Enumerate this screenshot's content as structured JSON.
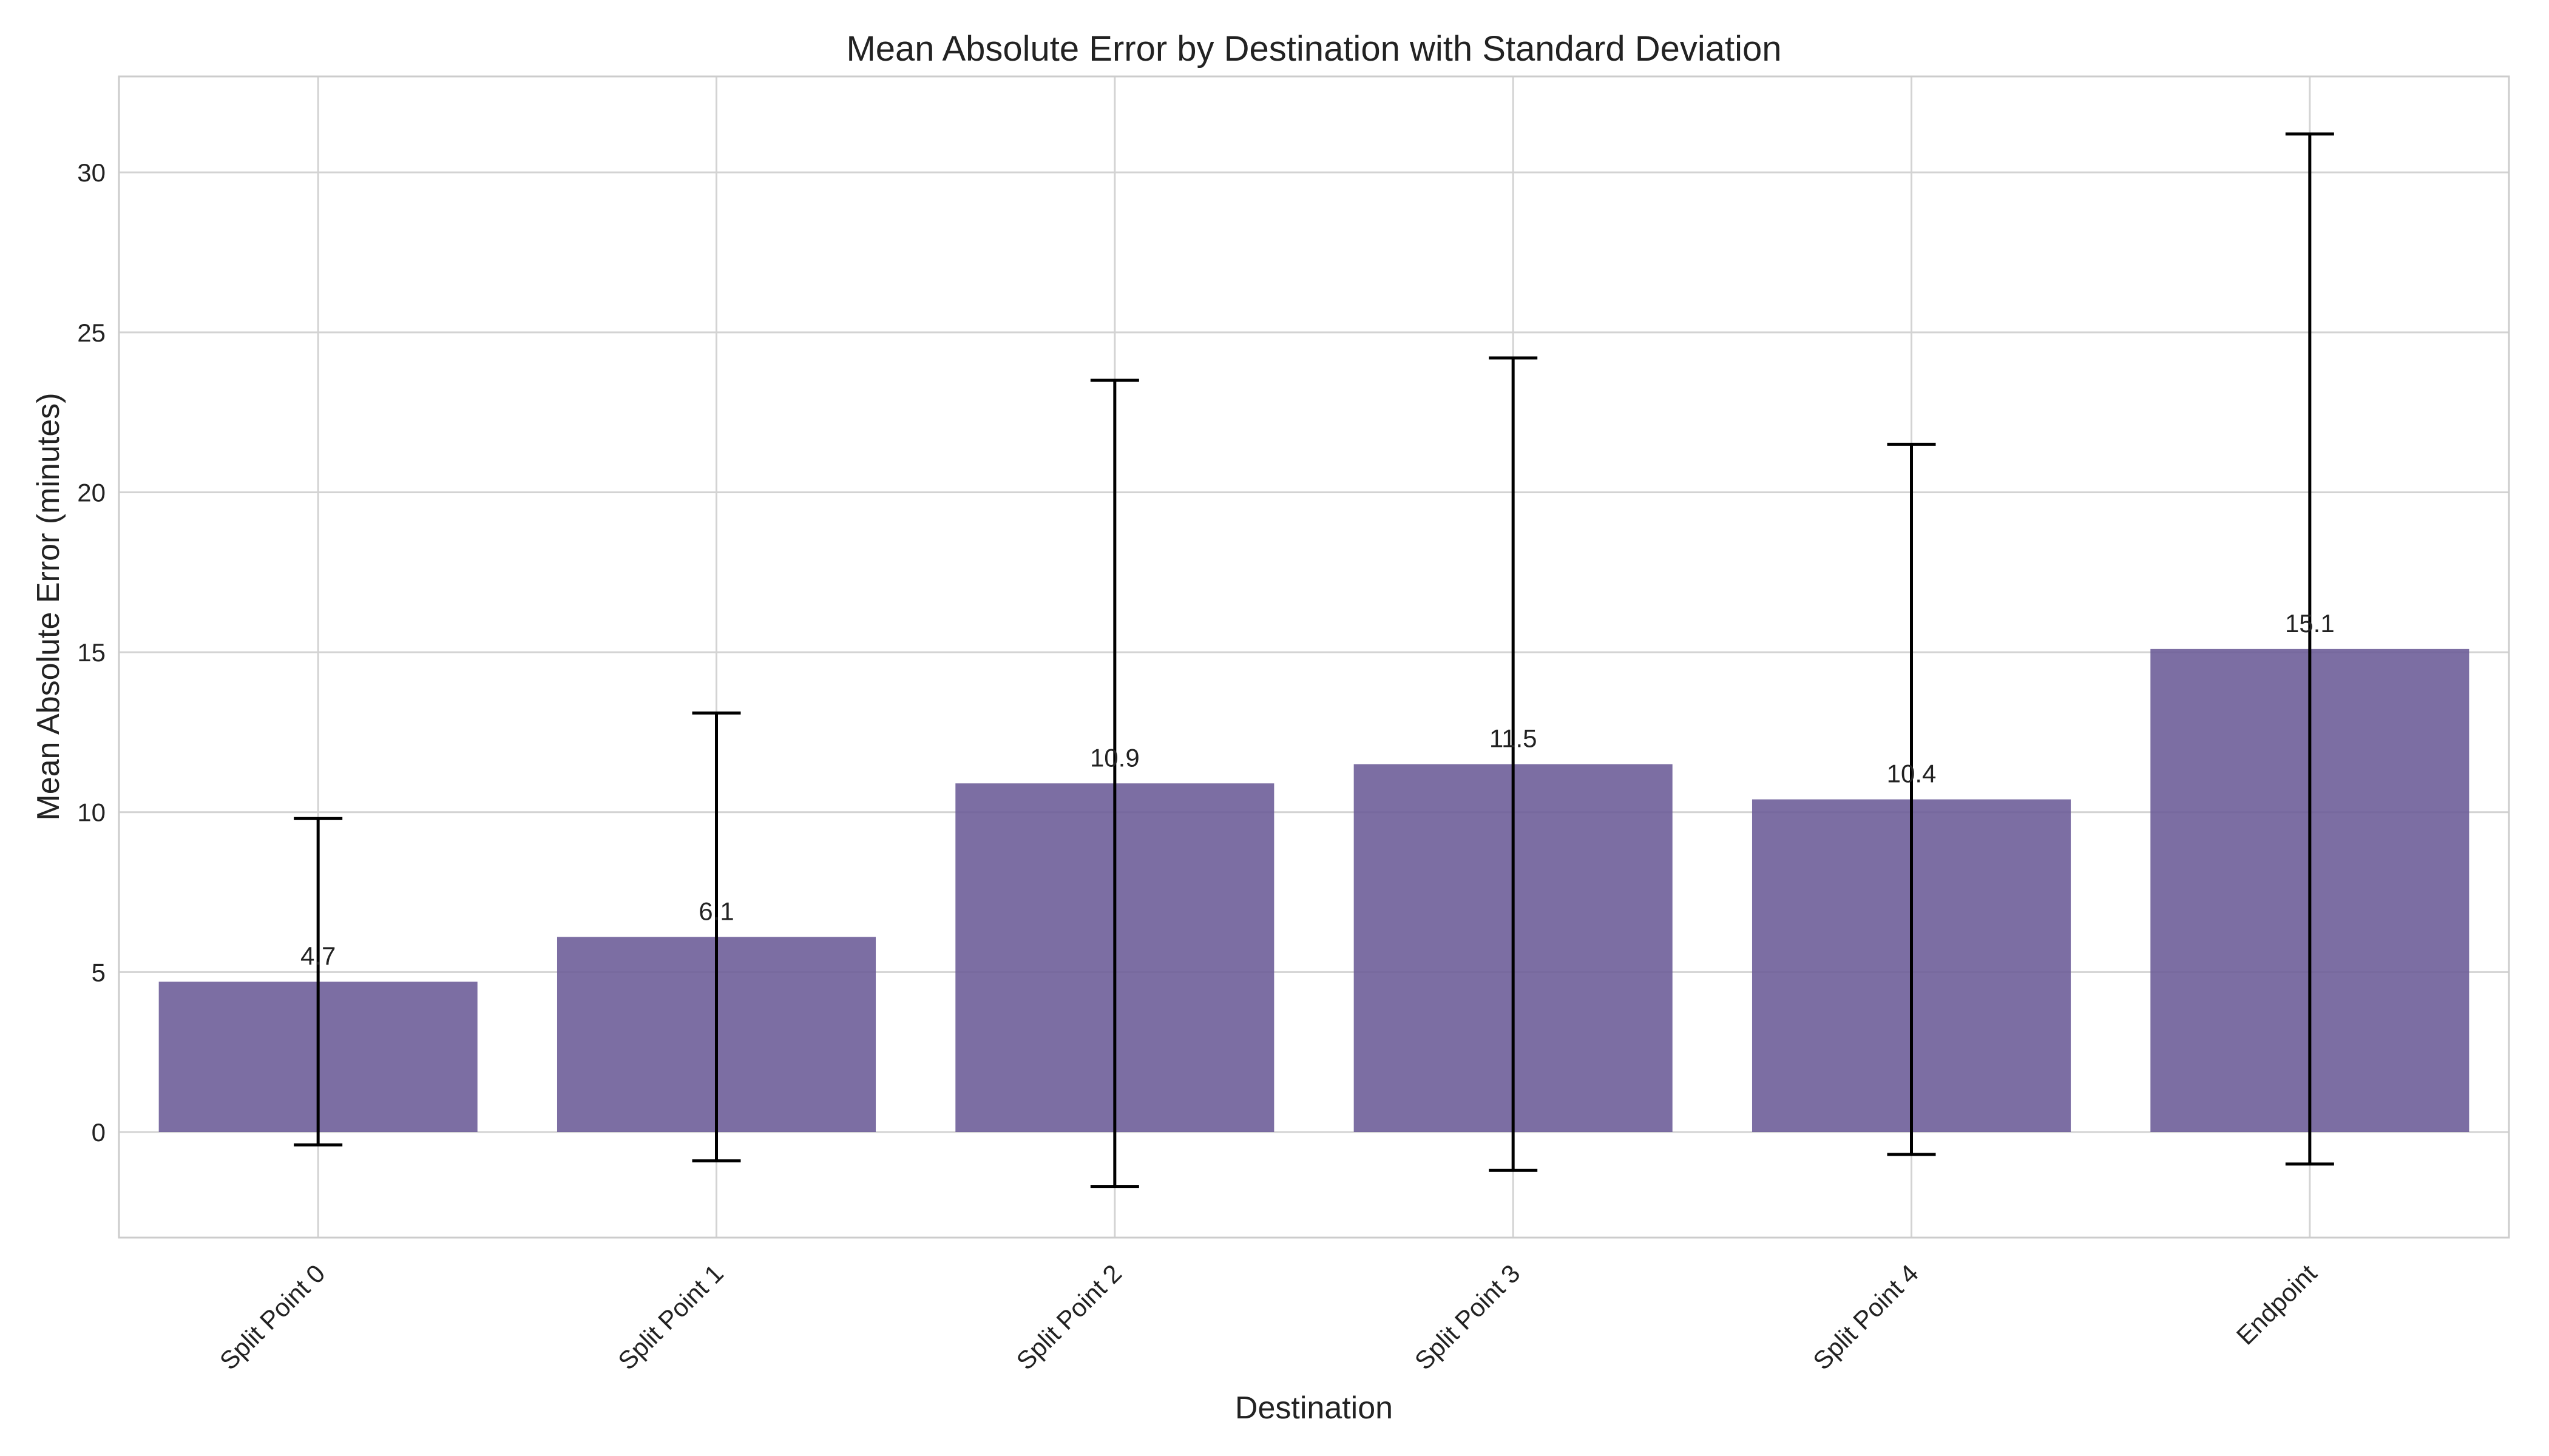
{
  "chart_data": {
    "type": "bar",
    "title": "Mean Absolute Error by Destination with Standard Deviation",
    "xlabel": "Destination",
    "ylabel": "Mean Absolute Error (minutes)",
    "categories": [
      "Split Point 0",
      "Split Point 1",
      "Split Point 2",
      "Split Point 3",
      "Split Point 4",
      "Endpoint"
    ],
    "values": [
      4.7,
      6.1,
      10.9,
      11.5,
      10.4,
      15.1
    ],
    "value_labels": [
      "4.7",
      "6.1",
      "10.9",
      "11.5",
      "10.4",
      "15.1"
    ],
    "std": [
      5.1,
      7.0,
      12.6,
      12.7,
      11.1,
      16.1
    ],
    "ylim": [
      -3.3,
      33.0
    ],
    "yticks": [
      0,
      5,
      10,
      15,
      20,
      25,
      30
    ],
    "grid": true,
    "bar_color": "#6a5a96",
    "errorbar_color": "#000000"
  }
}
